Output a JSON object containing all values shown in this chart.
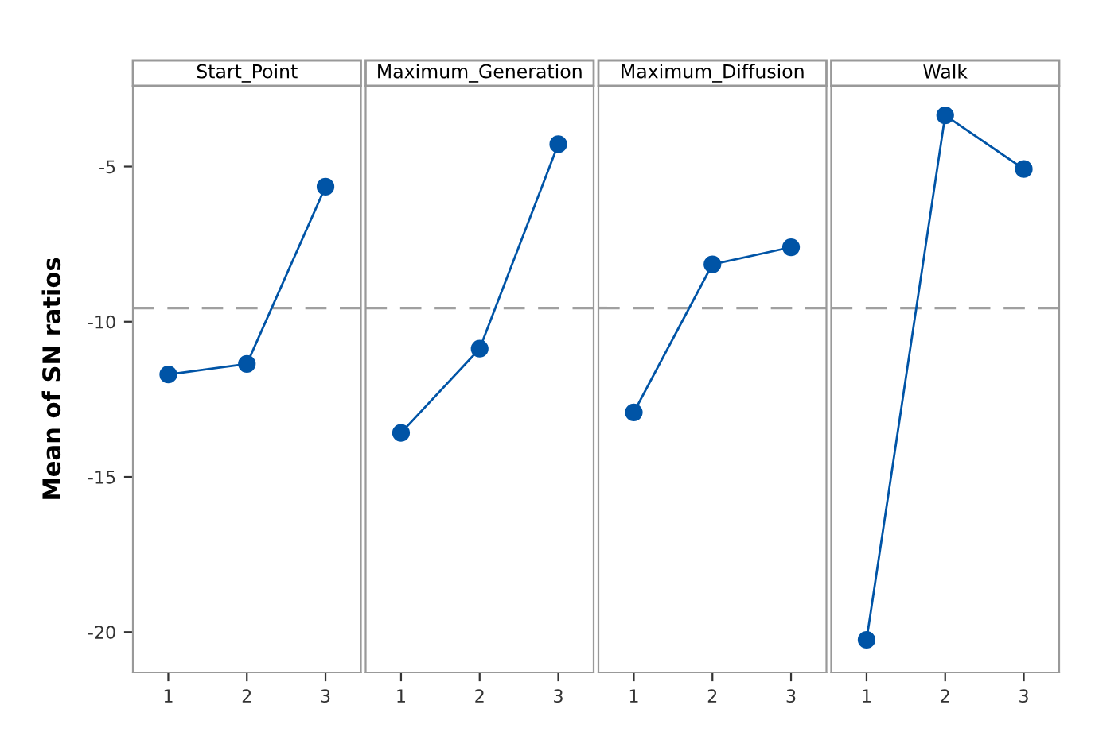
{
  "chart_data": [
    {
      "type": "line",
      "title": "Start_Point",
      "ylabel": "Mean of SN ratios",
      "categories": [
        "1",
        "2",
        "3"
      ],
      "values": [
        -11.7,
        -11.36,
        -5.65
      ],
      "color": "#0054a6",
      "marker": "circle",
      "ylim": [
        -21.3,
        -2.4
      ],
      "yticks": [
        -20,
        -15,
        -10,
        -5
      ],
      "ref_lines": [
        {
          "axis": "y",
          "value": -9.56,
          "color": "#a0a0a0",
          "line_style": "dashed"
        }
      ],
      "grid": false
    },
    {
      "type": "line",
      "title": "Maximum_Generation",
      "categories": [
        "1",
        "2",
        "3"
      ],
      "values": [
        -13.58,
        -10.87,
        -4.28
      ],
      "color": "#0054a6",
      "marker": "circle",
      "ylim": [
        -21.3,
        -2.4
      ],
      "tick_labels": "x",
      "ref_lines": [
        {
          "axis": "y",
          "value": -9.56,
          "color": "#a0a0a0",
          "line_style": "dashed"
        }
      ],
      "grid": false
    },
    {
      "type": "line",
      "title": "Maximum_Diffusion",
      "categories": [
        "1",
        "2",
        "3"
      ],
      "values": [
        -12.92,
        -8.15,
        -7.6
      ],
      "color": "#0054a6",
      "marker": "circle",
      "ylim": [
        -21.3,
        -2.4
      ],
      "tick_labels": "x",
      "ref_lines": [
        {
          "axis": "y",
          "value": -9.56,
          "color": "#a0a0a0",
          "line_style": "dashed"
        }
      ],
      "grid": false
    },
    {
      "type": "line",
      "title": "Walk",
      "categories": [
        "1",
        "2",
        "3"
      ],
      "values": [
        -20.25,
        -3.35,
        -5.08
      ],
      "color": "#0054a6",
      "marker": "circle",
      "ylim": [
        -21.3,
        -2.4
      ],
      "tick_labels": "x",
      "ref_lines": [
        {
          "axis": "y",
          "value": -9.56,
          "color": "#a0a0a0",
          "line_style": "dashed"
        }
      ],
      "grid": false
    }
  ]
}
